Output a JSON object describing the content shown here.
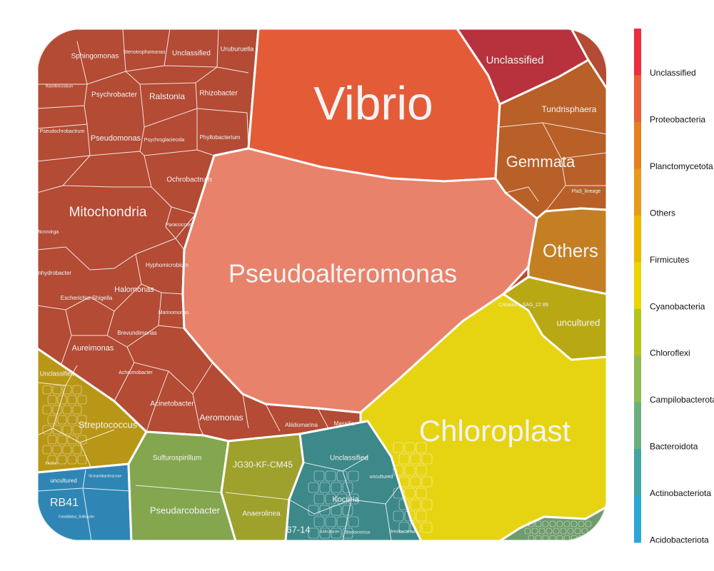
{
  "chart_data": {
    "type": "voronoi-treemap",
    "title": "",
    "legend": {
      "placement": "right",
      "entries": [
        {
          "name": "Unclassified",
          "color": "#e8303f"
        },
        {
          "name": "Proteobacteria",
          "color": "#e8603a"
        },
        {
          "name": "Planctomycetota",
          "color": "#e67e22"
        },
        {
          "name": "Others",
          "color": "#e89a1c"
        },
        {
          "name": "Firmicutes",
          "color": "#ebb800"
        },
        {
          "name": "Cyanobacteria",
          "color": "#e8d800"
        },
        {
          "name": "Chloroflexi",
          "color": "#b5c41c"
        },
        {
          "name": "Campilobacterota",
          "color": "#8fba55"
        },
        {
          "name": "Bacteroidota",
          "color": "#6dae7e"
        },
        {
          "name": "Actinobacteriota",
          "color": "#45a3a3"
        },
        {
          "name": "Acidobacteriota",
          "color": "#2ba7d6"
        }
      ]
    },
    "cells": [
      {
        "label": "Vibrio",
        "group": "Proteobacteria"
      },
      {
        "label": "Pseudoalteromonas",
        "group": "Proteobacteria"
      },
      {
        "label": "Mitochondria",
        "group": "Proteobacteria"
      },
      {
        "label": "Sphingomonas",
        "group": "Proteobacteria"
      },
      {
        "label": "Stenotrophomonas",
        "group": "Proteobacteria"
      },
      {
        "label": "Unclassified",
        "group": "Proteobacteria"
      },
      {
        "label": "Uruburuella",
        "group": "Proteobacteria"
      },
      {
        "label": "Rubellimicrobium",
        "group": "Proteobacteria"
      },
      {
        "label": "Psychrobacter",
        "group": "Proteobacteria"
      },
      {
        "label": "Ralstonia",
        "group": "Proteobacteria"
      },
      {
        "label": "Rhizobacter",
        "group": "Proteobacteria"
      },
      {
        "label": "Pseudochrobactrum",
        "group": "Proteobacteria"
      },
      {
        "label": "Pseudomonas",
        "group": "Proteobacteria"
      },
      {
        "label": "Psychroglaciecola",
        "group": "Proteobacteria"
      },
      {
        "label": "Phyllobacterium",
        "group": "Proteobacteria"
      },
      {
        "label": "Ochrobactrum",
        "group": "Proteobacteria"
      },
      {
        "label": "Paracoccus",
        "group": "Proteobacteria"
      },
      {
        "label": "Microvirga",
        "group": "Proteobacteria"
      },
      {
        "label": "Enhydrobacter",
        "group": "Proteobacteria"
      },
      {
        "label": "Hyphomicrobium",
        "group": "Proteobacteria"
      },
      {
        "label": "Halomonas",
        "group": "Proteobacteria"
      },
      {
        "label": "Escherichia-Shigella",
        "group": "Proteobacteria"
      },
      {
        "label": "Marinomonas",
        "group": "Proteobacteria"
      },
      {
        "label": "Brevundimonas",
        "group": "Proteobacteria"
      },
      {
        "label": "Aureimonas",
        "group": "Proteobacteria"
      },
      {
        "label": "Achromobacter",
        "group": "Proteobacteria"
      },
      {
        "label": "Acinetobacter",
        "group": "Proteobacteria"
      },
      {
        "label": "Aeromonas",
        "group": "Proteobacteria"
      },
      {
        "label": "Aliidiomarina",
        "group": "Proteobacteria"
      },
      {
        "label": "Massilia",
        "group": "Proteobacteria"
      },
      {
        "label": "Unclassified",
        "group": "Unclassified"
      },
      {
        "label": "Tundrisphaera",
        "group": "Planctomycetota"
      },
      {
        "label": "Gemmata",
        "group": "Planctomycetota"
      },
      {
        "label": "Pla3_lineage",
        "group": "Planctomycetota"
      },
      {
        "label": "Others",
        "group": "Others"
      },
      {
        "label": "Crinalium_SAG_22.89",
        "group": "Cyanobacteria"
      },
      {
        "label": "uncultured",
        "group": "Cyanobacteria"
      },
      {
        "label": "Chloroplast",
        "group": "Cyanobacteria"
      },
      {
        "label": "Unclassified",
        "group": "Firmicutes"
      },
      {
        "label": "Streptococcus",
        "group": "Firmicutes"
      },
      {
        "label": "Bacillus",
        "group": "Firmicutes"
      },
      {
        "label": "uncultured",
        "group": "Acidobacteriota"
      },
      {
        "label": "Vicinamibacteraceae",
        "group": "Acidobacteriota"
      },
      {
        "label": "RB41",
        "group": "Acidobacteriota"
      },
      {
        "label": "Candidatus_Solibacter",
        "group": "Acidobacteriota"
      },
      {
        "label": "Sulfurospirillum",
        "group": "Campilobacterota"
      },
      {
        "label": "Pseudarcobacter",
        "group": "Campilobacterota"
      },
      {
        "label": "JG30-KF-CM45",
        "group": "Chloroflexi"
      },
      {
        "label": "Anaerolinea",
        "group": "Chloroflexi"
      },
      {
        "label": "Unclassified",
        "group": "Actinobacteriota"
      },
      {
        "label": "uncultured",
        "group": "Actinobacteriota"
      },
      {
        "label": "Kocuria",
        "group": "Actinobacteriota"
      },
      {
        "label": "67-14",
        "group": "Actinobacteriota"
      },
      {
        "label": "Arthrobacter",
        "group": "Actinobacteriota"
      },
      {
        "label": "Blastococcus",
        "group": "Actinobacteriota"
      },
      {
        "label": "Brevibacterium",
        "group": "Actinobacteriota"
      }
    ]
  }
}
